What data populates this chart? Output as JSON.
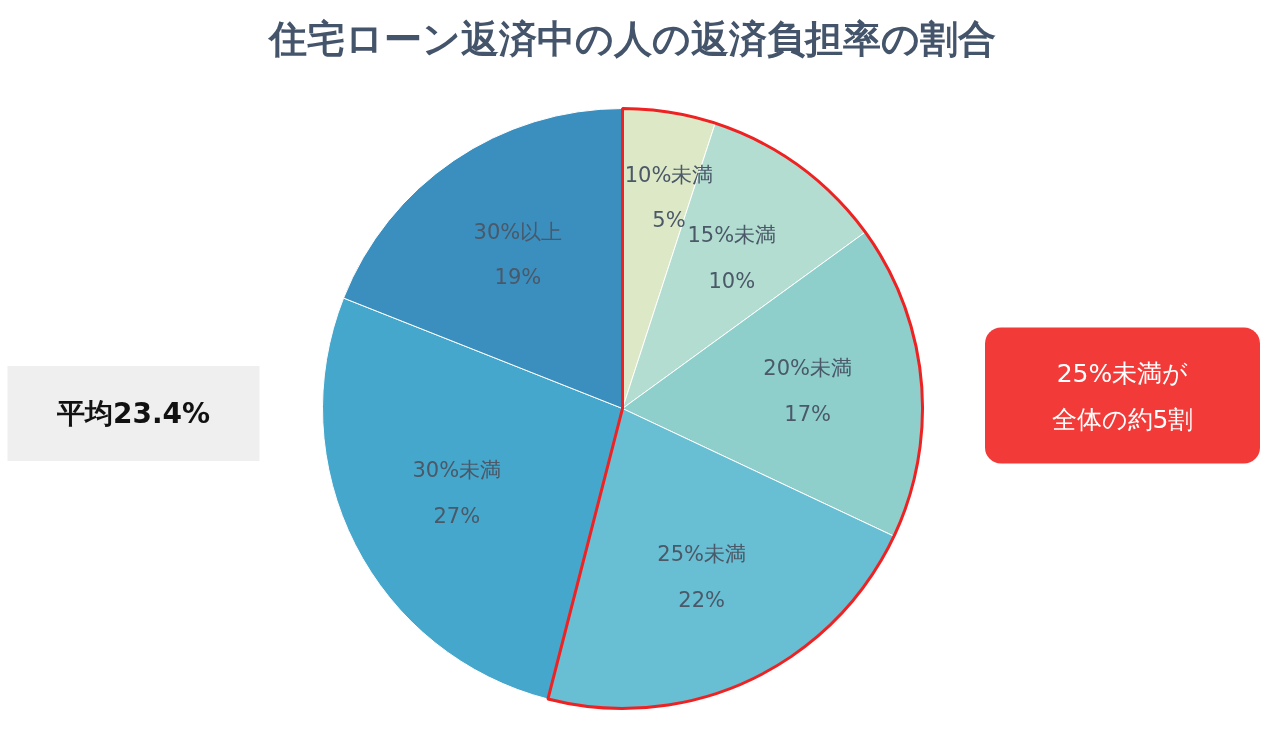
{
  "chart_data": {
    "type": "pie",
    "title": "住宅ローン返済中の人の返済負担率の割合",
    "categories": [
      "10%未満",
      "15%未満",
      "20%未満",
      "25%未満",
      "30%未満",
      "30%以上"
    ],
    "values": [
      5,
      10,
      17,
      22,
      27,
      19
    ],
    "value_labels": [
      "5%",
      "10%",
      "17%",
      "22%",
      "27%",
      "19%"
    ],
    "colors": [
      "#dde9c6",
      "#b2ddd0",
      "#8ecfcc",
      "#68bed2",
      "#46a7cc",
      "#3b8fbf"
    ],
    "annotations": [
      "平均23.4%",
      "25%未満が",
      "全体の約5割"
    ]
  }
}
